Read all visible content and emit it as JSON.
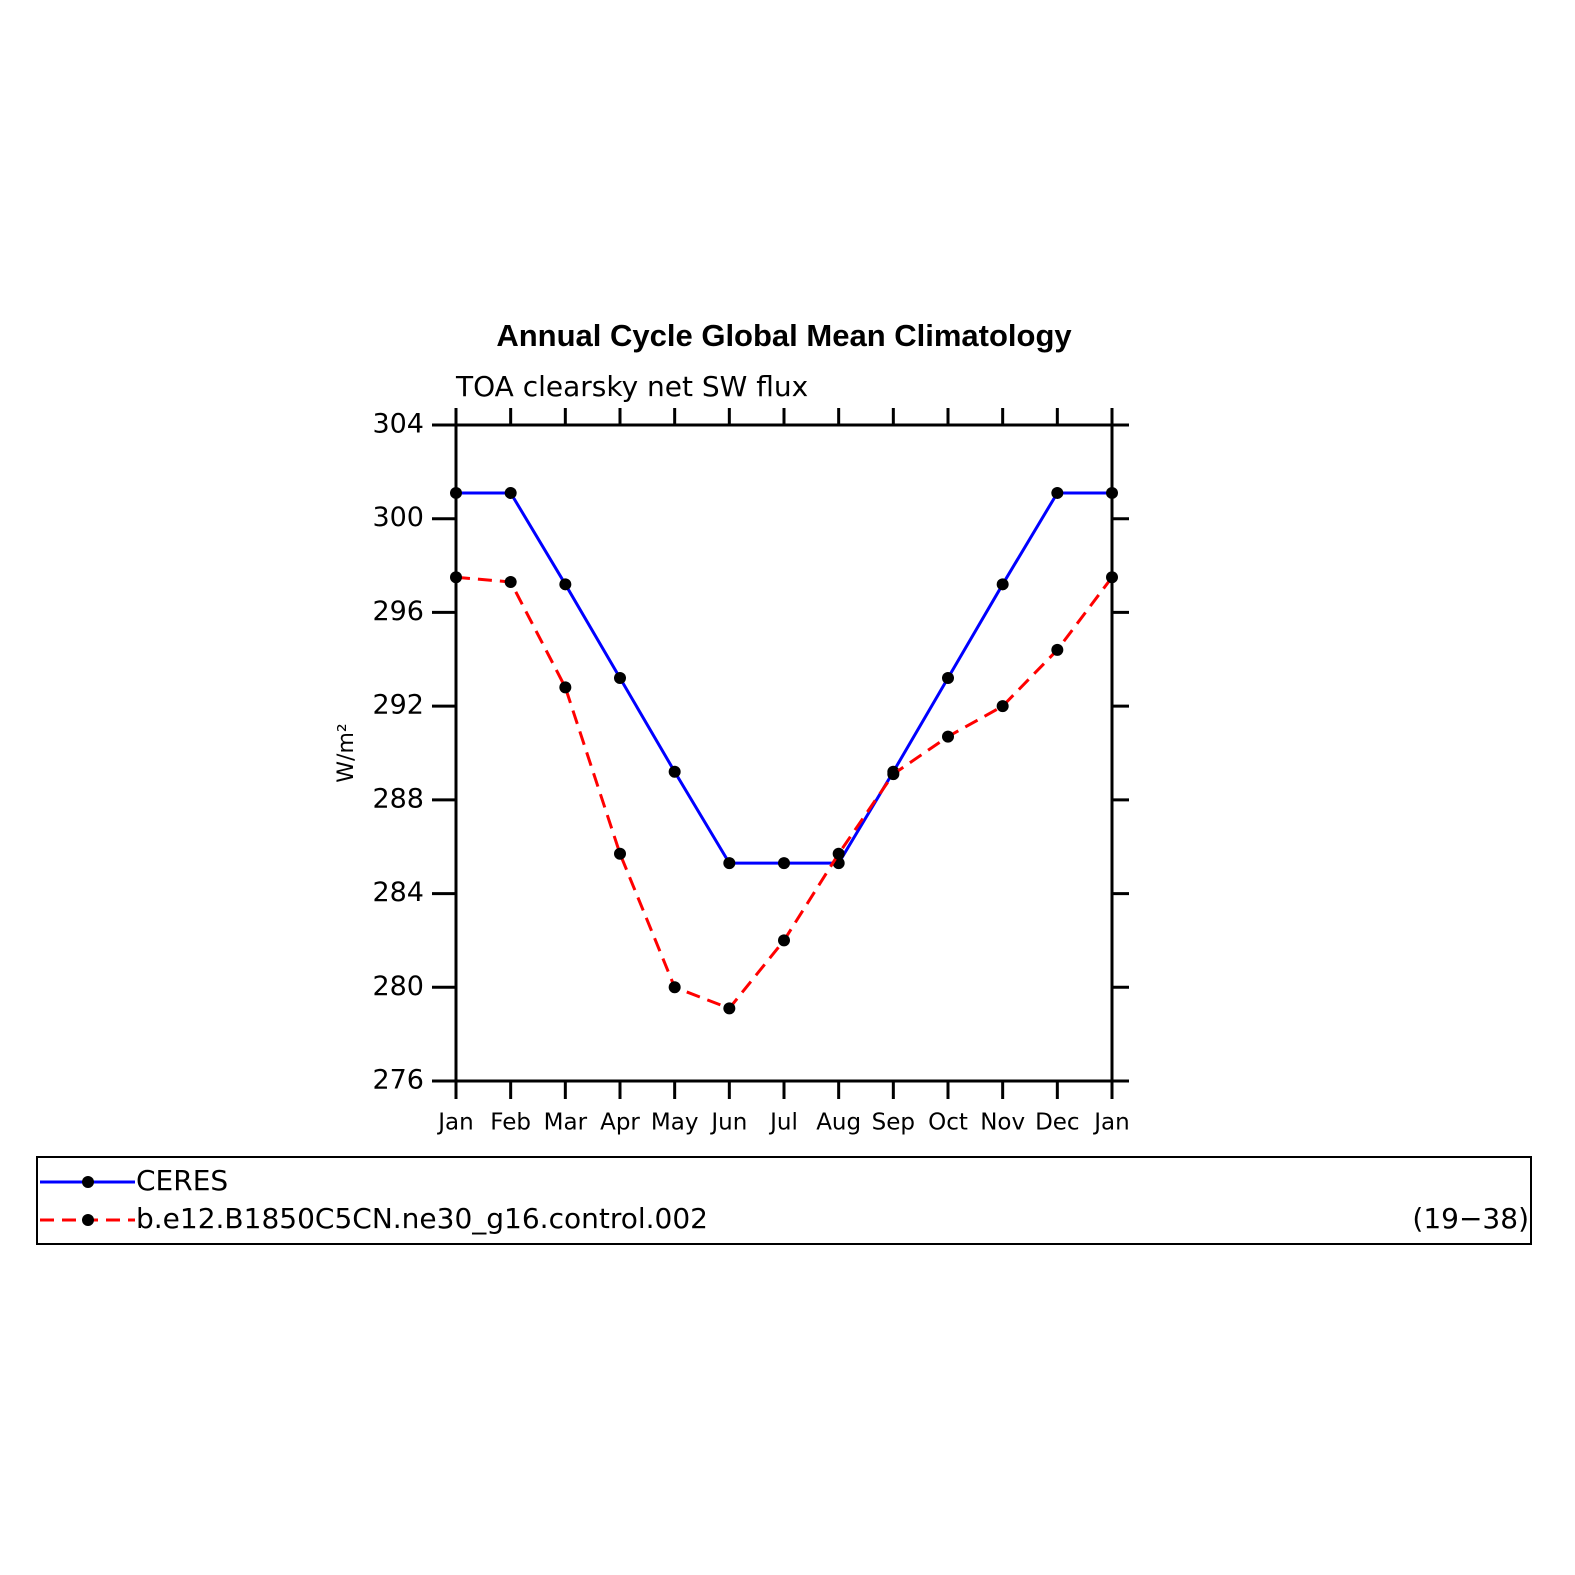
{
  "chart_data": {
    "type": "line",
    "title": "Annual Cycle Global Mean Climatology",
    "subtitle": "TOA clearsky net SW flux",
    "y_label": "W/m²",
    "categories": [
      "Jan",
      "Feb",
      "Mar",
      "Apr",
      "May",
      "Jun",
      "Jul",
      "Aug",
      "Sep",
      "Oct",
      "Nov",
      "Dec",
      "Jan"
    ],
    "series": [
      {
        "name": "CERES",
        "color": "#0000ff",
        "line_style": "solid",
        "values": [
          301.1,
          301.1,
          297.2,
          293.2,
          289.2,
          285.3,
          285.3,
          285.3,
          289.2,
          293.2,
          297.2,
          301.1,
          301.1
        ]
      },
      {
        "name": "b.e12.B1850C5CN.ne30_g16.control.002",
        "color": "#ff0000",
        "line_style": "dashed",
        "values": [
          297.5,
          297.3,
          292.8,
          285.7,
          280.0,
          279.1,
          282.0,
          285.7,
          289.1,
          290.7,
          292.0,
          294.4,
          297.5
        ]
      }
    ],
    "marker_color": "#000000",
    "legend_annotation": "(19−38)",
    "ylim": [
      276,
      304
    ],
    "yticks": [
      276,
      280,
      284,
      288,
      292,
      296,
      300,
      304
    ]
  }
}
